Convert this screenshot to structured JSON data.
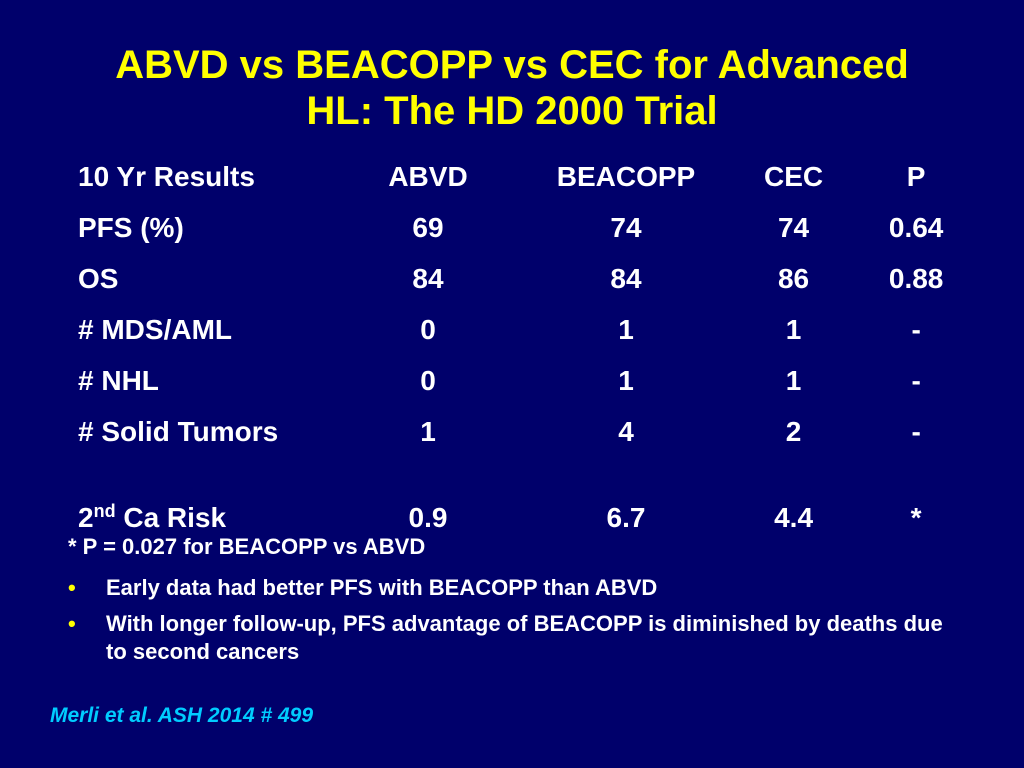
{
  "title": {
    "line1": "ABVD vs BEACOPP vs CEC for Advanced",
    "line2": "HL: The HD 2000 Trial"
  },
  "table": {
    "headers": [
      "10 Yr Results",
      "ABVD",
      "BEACOPP",
      "CEC",
      "P"
    ],
    "rows": [
      [
        "PFS (%)",
        "69",
        "74",
        "74",
        "0.64"
      ],
      [
        "OS",
        "84",
        "84",
        "86",
        "0.88"
      ],
      [
        "# MDS/AML",
        "0",
        "1",
        "1",
        "-"
      ],
      [
        "# NHL",
        "0",
        "1",
        "1",
        "-"
      ],
      [
        "# Solid Tumors",
        "1",
        "4",
        "2",
        "-"
      ],
      [
        "Ca Risk",
        "0.9",
        "6.7",
        "4.4",
        "*"
      ]
    ],
    "last_row_prefix": "2",
    "last_row_sup": "nd"
  },
  "footnote": "* P = 0.027 for BEACOPP vs ABVD",
  "bullet_glyph": "•",
  "bullets": [
    "Early data had better PFS with BEACOPP than ABVD",
    "With longer follow-up, PFS advantage of BEACOPP is diminished by deaths due to second cancers"
  ],
  "citation": "Merli et al.  ASH 2014 # 499",
  "colors": {
    "background": "#00006b",
    "title": "#ffff00",
    "text": "#ffffff",
    "bullet": "#ffff00",
    "citation": "#00ccff"
  }
}
